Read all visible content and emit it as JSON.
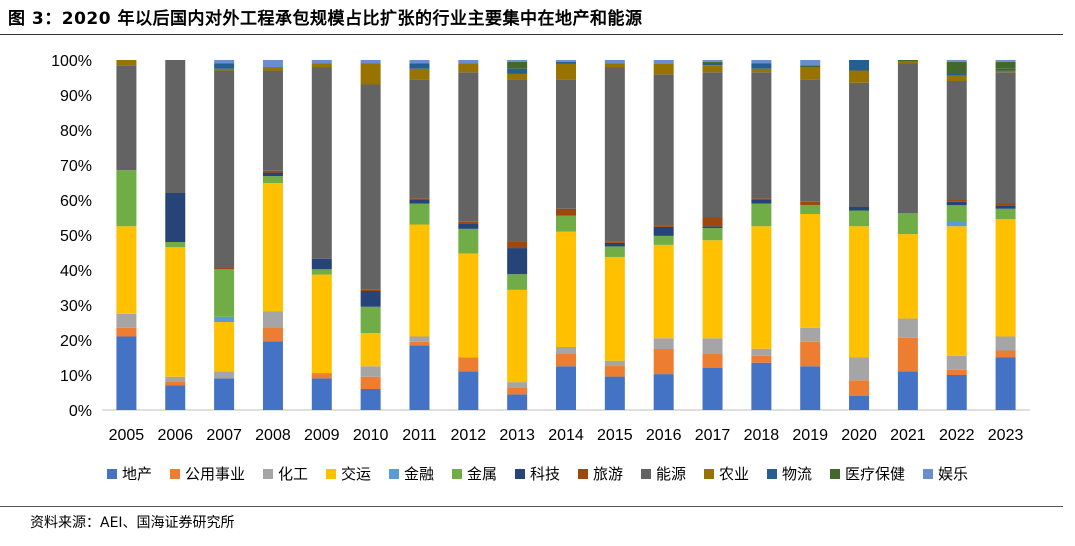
{
  "title": "图 3：2020 年以后国内对外工程承包规模占比扩张的行业主要集中在地产和能源",
  "source": "资料来源：AEI、国海证券研究所",
  "chart_data": {
    "type": "bar",
    "stacked": true,
    "normalized": true,
    "title": "图 3：2020 年以后国内对外工程承包规模占比扩张的行业主要集中在地产和能源",
    "xlabel": "",
    "ylabel": "",
    "ylim": [
      0,
      100
    ],
    "yticks": [
      "0%",
      "10%",
      "20%",
      "30%",
      "40%",
      "50%",
      "60%",
      "70%",
      "80%",
      "90%",
      "100%"
    ],
    "categories": [
      "2005",
      "2006",
      "2007",
      "2008",
      "2009",
      "2010",
      "2011",
      "2012",
      "2013",
      "2014",
      "2015",
      "2016",
      "2017",
      "2018",
      "2019",
      "2020",
      "2021",
      "2022",
      "2023"
    ],
    "legend_position": "bottom",
    "series": [
      {
        "name": "地产",
        "color": "#4472C4",
        "values": [
          21,
          7,
          9,
          19.5,
          9,
          6,
          18.5,
          11,
          4.5,
          12.5,
          9.5,
          10,
          12,
          13.5,
          12.5,
          4,
          11,
          10,
          15
        ]
      },
      {
        "name": "公用事业",
        "color": "#ED7D31",
        "values": [
          2.5,
          1,
          0,
          4,
          1.5,
          3.5,
          1,
          4,
          2,
          3.5,
          3,
          7,
          4,
          2,
          7,
          4.5,
          9.5,
          1.5,
          2
        ]
      },
      {
        "name": "化工",
        "color": "#A5A5A5",
        "values": [
          4,
          1.5,
          2,
          4.5,
          0,
          3,
          1.5,
          0,
          1.5,
          2,
          1.5,
          3,
          4.5,
          2,
          4,
          6.5,
          5.5,
          4,
          4
        ]
      },
      {
        "name": "交运",
        "color": "#FFC000",
        "values": [
          25,
          37,
          14,
          36.5,
          28,
          9.5,
          32,
          29.5,
          26.5,
          33,
          29.5,
          26,
          28,
          35,
          32.5,
          37.5,
          24,
          37,
          33.5
        ]
      },
      {
        "name": "金融",
        "color": "#5B9BD5",
        "values": [
          0,
          0,
          1.5,
          0,
          0,
          0,
          0,
          0,
          0,
          0,
          0,
          0,
          0,
          0,
          0,
          0,
          0,
          1.5,
          0
        ]
      },
      {
        "name": "金属",
        "color": "#70AD47",
        "values": [
          16,
          1.5,
          13.5,
          2,
          1.5,
          7.5,
          6,
          7,
          4.5,
          4.5,
          3,
          2.5,
          3.5,
          6.5,
          2.5,
          4.5,
          6,
          4.5,
          3
        ]
      },
      {
        "name": "科技",
        "color": "#264478",
        "values": [
          0,
          14,
          0,
          1,
          3,
          4.5,
          1,
          1.5,
          7.5,
          0,
          1,
          2.5,
          0.5,
          1,
          0,
          1,
          0,
          1,
          1
        ]
      },
      {
        "name": "旅游",
        "color": "#9E480E",
        "values": [
          0,
          0,
          0.5,
          0.5,
          0,
          0.5,
          0.5,
          0.5,
          2,
          2,
          0.5,
          0.5,
          2.5,
          0.5,
          1,
          0,
          0,
          0.5,
          0.5
        ]
      },
      {
        "name": "能源",
        "color": "#636363",
        "values": [
          30,
          38,
          56,
          28.5,
          54.5,
          58.5,
          34,
          42.5,
          46.5,
          37,
          49.5,
          42,
          41.5,
          36,
          35,
          35.5,
          42.5,
          34,
          37.5
        ]
      },
      {
        "name": "农业",
        "color": "#997300",
        "values": [
          1.5,
          0,
          0.5,
          1,
          1,
          6,
          3,
          2.5,
          1.5,
          4.5,
          1,
          3,
          2,
          1,
          3.5,
          3.5,
          0.5,
          1.5,
          0.5
        ]
      },
      {
        "name": "物流",
        "color": "#255E91",
        "values": [
          0,
          0,
          1.5,
          0,
          0,
          0,
          1.5,
          0,
          1.5,
          0.5,
          0,
          0,
          0.5,
          1.5,
          0,
          3,
          0,
          0.5,
          0.5
        ]
      },
      {
        "name": "医疗保健",
        "color": "#43682B",
        "values": [
          0,
          0,
          0,
          0,
          0,
          0,
          0,
          0,
          2,
          0,
          0,
          0,
          0.5,
          0,
          0.5,
          0,
          0.5,
          3.5,
          2
        ]
      },
      {
        "name": "娱乐",
        "color": "#698ED0",
        "values": [
          0,
          0,
          1,
          2,
          1,
          1,
          1,
          1,
          0.5,
          0.5,
          1,
          1,
          0.5,
          1,
          1.5,
          0,
          0,
          0.5,
          0.5
        ]
      }
    ]
  }
}
